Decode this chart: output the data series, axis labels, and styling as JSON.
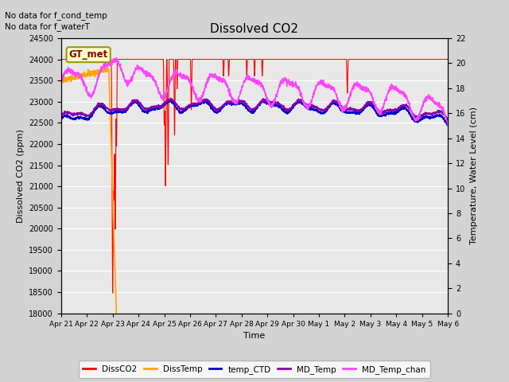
{
  "title": "Dissolved CO2",
  "xlabel": "Time",
  "ylabel_left": "Dissolved CO2 (ppm)",
  "ylabel_right": "Temperature, Water Level (cm)",
  "no_data_text1": "No data for f_cond_temp",
  "no_data_text2": "No data for f_waterT",
  "gt_met_label": "GT_met",
  "ylim_left": [
    18000,
    24500
  ],
  "ylim_right": [
    0,
    22
  ],
  "yticks_left": [
    18000,
    18500,
    19000,
    19500,
    20000,
    20500,
    21000,
    21500,
    22000,
    22500,
    23000,
    23500,
    24000,
    24500
  ],
  "yticks_right": [
    0,
    2,
    4,
    6,
    8,
    10,
    12,
    14,
    16,
    18,
    20,
    22
  ],
  "xtick_labels": [
    "Apr 21",
    "Apr 22",
    "Apr 23",
    "Apr 24",
    "Apr 25",
    "Apr 26",
    "Apr 27",
    "Apr 28",
    "Apr 29",
    "Apr 30",
    "May 1",
    "May 2",
    "May 3",
    "May 4",
    "May 5",
    "May 6"
  ],
  "background_color": "#d3d3d3",
  "plot_bg_color": "#e8e8e8",
  "colors": {
    "DissCO2": "#ff0000",
    "DissTemp": "#ffa500",
    "temp_CTD": "#0000cc",
    "MD_Temp": "#8800aa",
    "MD_Temp_chan": "#ff44ff"
  },
  "legend_entries": [
    "DissCO2",
    "DissTemp",
    "temp_CTD",
    "MD_Temp",
    "MD_Temp_chan"
  ]
}
